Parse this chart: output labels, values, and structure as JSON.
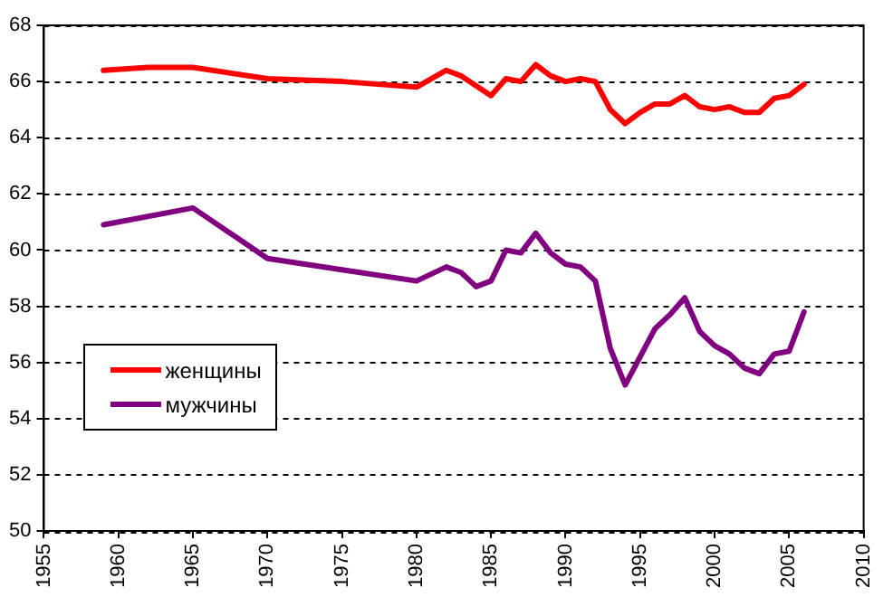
{
  "chart_data": {
    "type": "line",
    "xlim": [
      1955,
      2010
    ],
    "xticks": [
      1955,
      1960,
      1965,
      1970,
      1975,
      1980,
      1985,
      1990,
      1995,
      2000,
      2005,
      2010
    ],
    "ylim": [
      50,
      68
    ],
    "yticks": [
      50,
      52,
      54,
      56,
      58,
      60,
      62,
      64,
      66,
      68
    ],
    "grid": "y",
    "legend": "bottom left",
    "marker": "none",
    "line_style": "solid",
    "series": [
      {
        "name": "женщины",
        "color": "#ff0000",
        "x": [
          1959,
          1962,
          1965,
          1970,
          1975,
          1980,
          1982,
          1983,
          1985,
          1986,
          1987,
          1988,
          1989,
          1990,
          1991,
          1992,
          1993,
          1994,
          1995,
          1996,
          1997,
          1998,
          1999,
          2000,
          2001,
          2002,
          2003,
          2004,
          2005,
          2006
        ],
        "values": [
          66.4,
          66.5,
          66.5,
          66.1,
          66.0,
          65.8,
          66.4,
          66.2,
          65.5,
          66.1,
          66.0,
          66.6,
          66.2,
          66.0,
          66.1,
          66.0,
          65.0,
          64.5,
          64.9,
          65.2,
          65.2,
          65.5,
          65.1,
          65.0,
          65.1,
          64.9,
          64.9,
          65.4,
          65.5,
          65.9
        ]
      },
      {
        "name": "мужчины",
        "color": "#800080",
        "x": [
          1959,
          1965,
          1970,
          1975,
          1980,
          1982,
          1983,
          1984,
          1985,
          1986,
          1987,
          1988,
          1989,
          1990,
          1991,
          1992,
          1993,
          1994,
          1995,
          1996,
          1997,
          1998,
          1999,
          2000,
          2001,
          2002,
          2003,
          2004,
          2005,
          2006
        ],
        "values": [
          60.9,
          61.5,
          59.7,
          59.3,
          58.9,
          59.4,
          59.2,
          58.7,
          58.9,
          60.0,
          59.9,
          60.6,
          59.9,
          59.5,
          59.4,
          58.9,
          56.5,
          55.2,
          56.2,
          57.2,
          57.7,
          58.3,
          57.1,
          56.6,
          56.3,
          55.8,
          55.6,
          56.3,
          56.4,
          57.8
        ]
      }
    ]
  }
}
